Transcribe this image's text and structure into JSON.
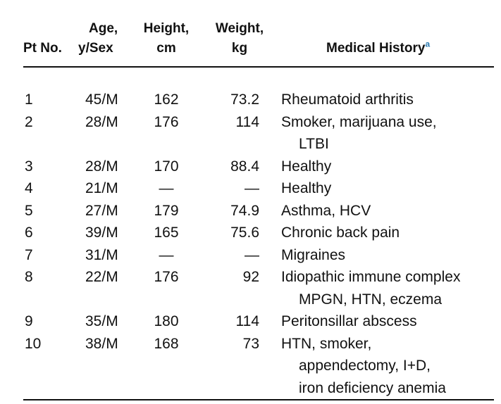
{
  "table": {
    "headers": {
      "pt_no": "Pt No.",
      "age_line1": "Age,",
      "age_line2": "y/Sex",
      "height_line1": "Height,",
      "height_line2": "cm",
      "weight_line1": "Weight,",
      "weight_line2": "kg",
      "history": "Medical History",
      "history_footnote": "a"
    },
    "rows": [
      {
        "pt": "1",
        "age_sex": "45/M",
        "height": "162",
        "weight": "73.2",
        "history": [
          "Rheumatoid arthritis"
        ]
      },
      {
        "pt": "2",
        "age_sex": "28/M",
        "height": "176",
        "weight": "114",
        "history": [
          "Smoker, marijuana use,",
          "LTBI"
        ]
      },
      {
        "pt": "3",
        "age_sex": "28/M",
        "height": "170",
        "weight": "88.4",
        "history": [
          "Healthy"
        ]
      },
      {
        "pt": "4",
        "age_sex": "21/M",
        "height": "—",
        "weight": "—",
        "history": [
          "Healthy"
        ]
      },
      {
        "pt": "5",
        "age_sex": "27/M",
        "height": "179",
        "weight": "74.9",
        "history": [
          "Asthma, HCV"
        ]
      },
      {
        "pt": "6",
        "age_sex": "39/M",
        "height": "165",
        "weight": "75.6",
        "history": [
          "Chronic back pain"
        ]
      },
      {
        "pt": "7",
        "age_sex": "31/M",
        "height": "—",
        "weight": "—",
        "history": [
          "Migraines"
        ]
      },
      {
        "pt": "8",
        "age_sex": "22/M",
        "height": "176",
        "weight": "92",
        "history": [
          "Idiopathic immune complex",
          "MPGN, HTN, eczema"
        ]
      },
      {
        "pt": "9",
        "age_sex": "35/M",
        "height": "180",
        "weight": "114",
        "history": [
          "Peritonsillar abscess"
        ]
      },
      {
        "pt": "10",
        "age_sex": "38/M",
        "height": "168",
        "weight": "73",
        "history": [
          "HTN, smoker,",
          "appendectomy, I+D,",
          "iron deficiency anemia"
        ]
      }
    ]
  }
}
